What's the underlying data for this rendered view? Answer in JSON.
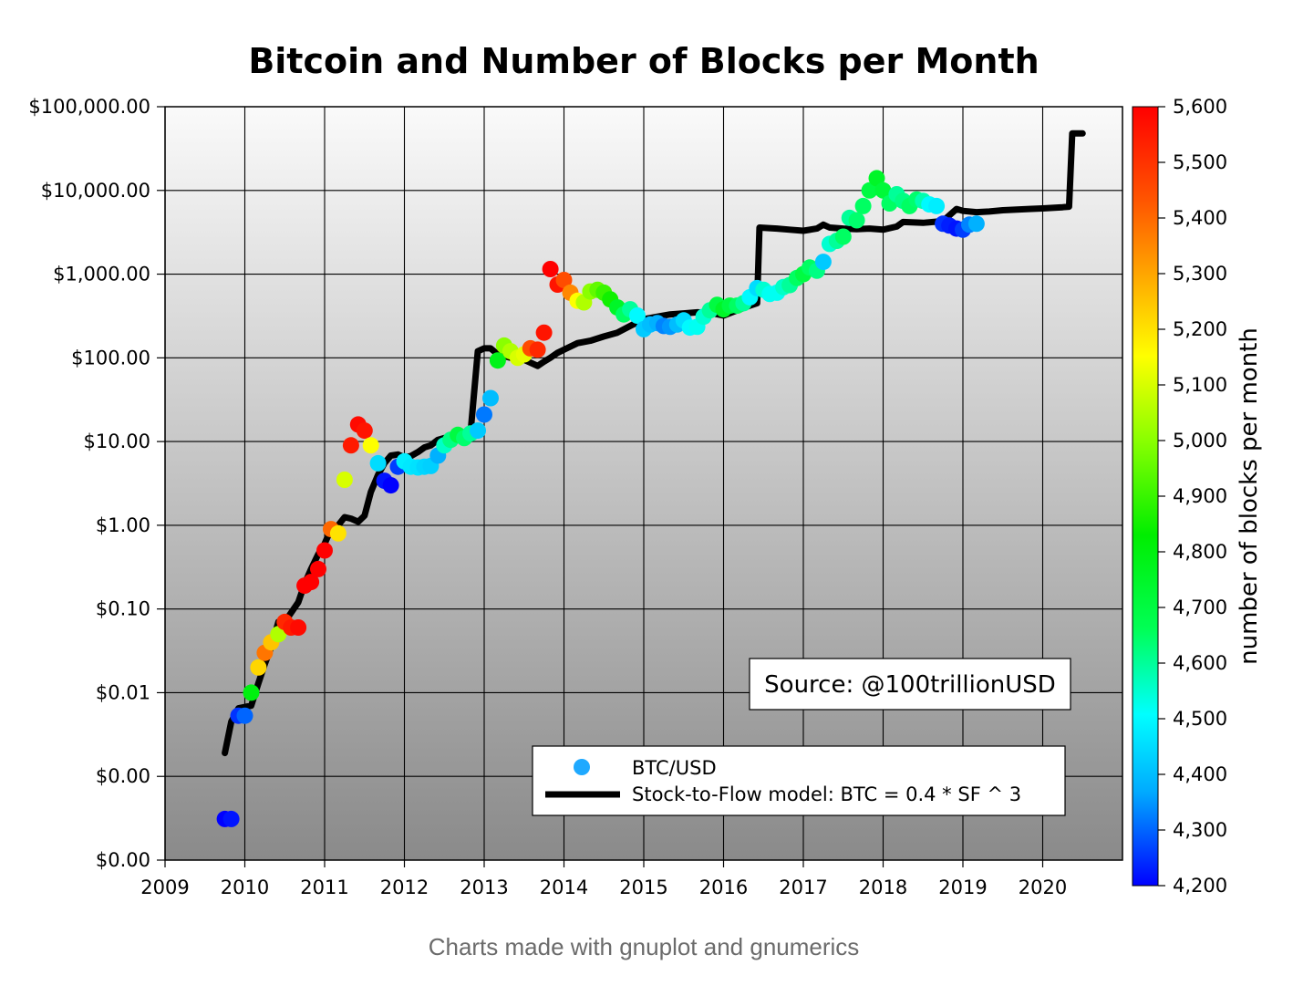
{
  "caption": "Charts made with gnuplot and gnumerics",
  "chart_data": {
    "type": "scatter",
    "title": "Bitcoin and Number of Blocks per Month",
    "xlabel": "",
    "ylabel": "",
    "y_scale": "log",
    "xlim": [
      2009,
      2021
    ],
    "ylim": [
      0.0001,
      100000
    ],
    "x_ticks": [
      2009,
      2010,
      2011,
      2012,
      2013,
      2014,
      2015,
      2016,
      2017,
      2018,
      2019,
      2020
    ],
    "x_tick_labels": [
      "2009",
      "2010",
      "2011",
      "2012",
      "2013",
      "2014",
      "2015",
      "2016",
      "2017",
      "2018",
      "2019",
      "2020"
    ],
    "y_ticks": [
      0.0001,
      0.001,
      0.01,
      0.1,
      1,
      10,
      100,
      1000,
      10000,
      100000
    ],
    "y_tick_labels": [
      "$0.00",
      "$0.00",
      "$0.01",
      "$0.10",
      "$1.00",
      "$10.00",
      "$100.00",
      "$1,000.00",
      "$10,000.00",
      "$100,000.00"
    ],
    "grid": true,
    "background_gradient": [
      "#fafafa",
      "#8a8a8a"
    ],
    "colorbar": {
      "label": "number of blocks per month",
      "min": 4200,
      "max": 5600,
      "ticks": [
        4200,
        4300,
        4400,
        4500,
        4600,
        4700,
        4800,
        4900,
        5000,
        5100,
        5200,
        5300,
        5400,
        5500,
        5600
      ],
      "tick_labels": [
        "4,200",
        "4,300",
        "4,400",
        "4,500",
        "4,600",
        "4,700",
        "4,800",
        "4,900",
        "5,000",
        "5,100",
        "5,200",
        "5,300",
        "5,400",
        "5,500",
        "5,600"
      ],
      "colors": [
        "#0000ff",
        "#00aaff",
        "#00ffff",
        "#00ff55",
        "#00ee00",
        "#88ff00",
        "#ffff00",
        "#ffaa00",
        "#ff5500",
        "#ff0000"
      ]
    },
    "legend": {
      "placement": "bottom-right",
      "entries": [
        "BTC/USD",
        "Stock-to-Flow model: BTC = 0.4 * SF ^ 3"
      ],
      "marker_color": "#1fa9ff"
    },
    "source_annotation": "Source: @100trillionUSD",
    "series": [
      {
        "name": "BTC/USD",
        "kind": "scatter",
        "points": [
          [
            2009.75,
            0.00031,
            4200
          ],
          [
            2009.83,
            0.00031,
            4220
          ],
          [
            2009.92,
            0.0053,
            4250
          ],
          [
            2010.0,
            0.0053,
            4300
          ],
          [
            2010.08,
            0.01,
            4800
          ],
          [
            2010.17,
            0.02,
            5220
          ],
          [
            2010.25,
            0.03,
            5380
          ],
          [
            2010.33,
            0.04,
            5250
          ],
          [
            2010.42,
            0.05,
            5050
          ],
          [
            2010.5,
            0.07,
            5520
          ],
          [
            2010.58,
            0.06,
            5550
          ],
          [
            2010.67,
            0.06,
            5580
          ],
          [
            2010.75,
            0.19,
            5600
          ],
          [
            2010.83,
            0.21,
            5600
          ],
          [
            2010.92,
            0.3,
            5600
          ],
          [
            2011.0,
            0.5,
            5600
          ],
          [
            2011.08,
            0.9,
            5400
          ],
          [
            2011.17,
            0.8,
            5200
          ],
          [
            2011.25,
            3.5,
            5100
          ],
          [
            2011.33,
            9.0,
            5550
          ],
          [
            2011.42,
            16.0,
            5580
          ],
          [
            2011.5,
            13.5,
            5560
          ],
          [
            2011.58,
            9.0,
            5150
          ],
          [
            2011.67,
            5.5,
            4450
          ],
          [
            2011.75,
            3.4,
            4220
          ],
          [
            2011.83,
            3.0,
            4200
          ],
          [
            2011.92,
            5.0,
            4260
          ],
          [
            2012.0,
            5.8,
            4480
          ],
          [
            2012.08,
            5.0,
            4470
          ],
          [
            2012.17,
            4.9,
            4460
          ],
          [
            2012.25,
            5.0,
            4440
          ],
          [
            2012.33,
            5.1,
            4430
          ],
          [
            2012.42,
            6.8,
            4380
          ],
          [
            2012.5,
            9.0,
            4560
          ],
          [
            2012.58,
            10.5,
            4620
          ],
          [
            2012.67,
            12.0,
            4700
          ],
          [
            2012.75,
            11.0,
            4640
          ],
          [
            2012.83,
            12.5,
            4600
          ],
          [
            2012.92,
            13.5,
            4420
          ],
          [
            2013.0,
            21.0,
            4320
          ],
          [
            2013.08,
            33.0,
            4400
          ],
          [
            2013.17,
            93.0,
            4780
          ],
          [
            2013.25,
            140.0,
            5000
          ],
          [
            2013.33,
            120.0,
            5050
          ],
          [
            2013.42,
            100.0,
            5100
          ],
          [
            2013.5,
            110.0,
            5120
          ],
          [
            2013.58,
            130.0,
            5450
          ],
          [
            2013.67,
            125.0,
            5520
          ],
          [
            2013.75,
            200.0,
            5560
          ],
          [
            2013.83,
            1150.0,
            5600
          ],
          [
            2013.92,
            750.0,
            5560
          ],
          [
            2014.0,
            850.0,
            5450
          ],
          [
            2014.08,
            600.0,
            5350
          ],
          [
            2014.17,
            480.0,
            5150
          ],
          [
            2014.25,
            460.0,
            5050
          ],
          [
            2014.33,
            620.0,
            5000
          ],
          [
            2014.42,
            650.0,
            4950
          ],
          [
            2014.5,
            600.0,
            4900
          ],
          [
            2014.58,
            500.0,
            4850
          ],
          [
            2014.67,
            400.0,
            4750
          ],
          [
            2014.75,
            330.0,
            4650
          ],
          [
            2014.83,
            380.0,
            4600
          ],
          [
            2014.92,
            320.0,
            4500
          ],
          [
            2015.0,
            220.0,
            4420
          ],
          [
            2015.08,
            250.0,
            4400
          ],
          [
            2015.17,
            260.0,
            4380
          ],
          [
            2015.25,
            240.0,
            4330
          ],
          [
            2015.33,
            235.0,
            4350
          ],
          [
            2015.42,
            250.0,
            4400
          ],
          [
            2015.5,
            280.0,
            4450
          ],
          [
            2015.58,
            230.0,
            4500
          ],
          [
            2015.67,
            235.0,
            4520
          ],
          [
            2015.75,
            310.0,
            4550
          ],
          [
            2015.83,
            370.0,
            4600
          ],
          [
            2015.92,
            430.0,
            4700
          ],
          [
            2016.0,
            380.0,
            4750
          ],
          [
            2016.08,
            420.0,
            4700
          ],
          [
            2016.17,
            420.0,
            4650
          ],
          [
            2016.25,
            450.0,
            4600
          ],
          [
            2016.33,
            530.0,
            4500
          ],
          [
            2016.42,
            680.0,
            4450
          ],
          [
            2016.5,
            650.0,
            4550
          ],
          [
            2016.58,
            580.0,
            4520
          ],
          [
            2016.67,
            600.0,
            4520
          ],
          [
            2016.75,
            700.0,
            4560
          ],
          [
            2016.83,
            740.0,
            4600
          ],
          [
            2016.92,
            900.0,
            4650
          ],
          [
            2017.0,
            1000.0,
            4700
          ],
          [
            2017.08,
            1200.0,
            4650
          ],
          [
            2017.17,
            1100.0,
            4620
          ],
          [
            2017.25,
            1400.0,
            4420
          ],
          [
            2017.33,
            2300.0,
            4550
          ],
          [
            2017.42,
            2500.0,
            4600
          ],
          [
            2017.5,
            2800.0,
            4650
          ],
          [
            2017.58,
            4700.0,
            4600
          ],
          [
            2017.67,
            4400.0,
            4640
          ],
          [
            2017.75,
            6500.0,
            4650
          ],
          [
            2017.83,
            10000.0,
            4700
          ],
          [
            2017.92,
            14000.0,
            4750
          ],
          [
            2018.0,
            10000.0,
            4720
          ],
          [
            2018.08,
            7000.0,
            4650
          ],
          [
            2018.17,
            9000.0,
            4600
          ],
          [
            2018.25,
            7500.0,
            4620
          ],
          [
            2018.33,
            6500.0,
            4650
          ],
          [
            2018.42,
            7800.0,
            4640
          ],
          [
            2018.5,
            7500.0,
            4580
          ],
          [
            2018.58,
            6800.0,
            4500
          ],
          [
            2018.67,
            6500.0,
            4480
          ],
          [
            2018.75,
            4000.0,
            4250
          ],
          [
            2018.83,
            3800.0,
            4230
          ],
          [
            2018.92,
            3500.0,
            4220
          ],
          [
            2019.0,
            3400.0,
            4260
          ],
          [
            2019.08,
            3900.0,
            4330
          ],
          [
            2019.17,
            4000.0,
            4380
          ]
        ]
      },
      {
        "name": "Stock-to-Flow model: BTC = 0.4 * SF ^ 3",
        "kind": "line",
        "color": "#000000",
        "points": [
          [
            2009.75,
            0.0019
          ],
          [
            2009.83,
            0.0045
          ],
          [
            2009.92,
            0.0065
          ],
          [
            2010.08,
            0.007
          ],
          [
            2010.17,
            0.013
          ],
          [
            2010.25,
            0.022
          ],
          [
            2010.33,
            0.035
          ],
          [
            2010.42,
            0.07
          ],
          [
            2010.5,
            0.07
          ],
          [
            2010.58,
            0.09
          ],
          [
            2010.67,
            0.12
          ],
          [
            2010.75,
            0.2
          ],
          [
            2010.83,
            0.3
          ],
          [
            2010.92,
            0.45
          ],
          [
            2011.0,
            0.6
          ],
          [
            2011.08,
            0.9
          ],
          [
            2011.17,
            1.0
          ],
          [
            2011.25,
            1.25
          ],
          [
            2011.33,
            1.2
          ],
          [
            2011.42,
            1.1
          ],
          [
            2011.5,
            1.3
          ],
          [
            2011.58,
            2.5
          ],
          [
            2011.67,
            4.0
          ],
          [
            2011.75,
            5.5
          ],
          [
            2011.83,
            6.8
          ],
          [
            2011.92,
            7.0
          ],
          [
            2012.0,
            6.5
          ],
          [
            2012.08,
            6.7
          ],
          [
            2012.17,
            7.5
          ],
          [
            2012.25,
            8.5
          ],
          [
            2012.33,
            9.0
          ],
          [
            2012.42,
            10.5
          ],
          [
            2012.5,
            11.0
          ],
          [
            2012.58,
            11.5
          ],
          [
            2012.67,
            12.0
          ],
          [
            2012.75,
            12.5
          ],
          [
            2012.83,
            13.0
          ],
          [
            2012.92,
            120.0
          ],
          [
            2013.0,
            130.0
          ],
          [
            2013.08,
            130.0
          ],
          [
            2013.17,
            110.0
          ],
          [
            2013.25,
            105.0
          ],
          [
            2013.33,
            100.0
          ],
          [
            2013.5,
            95.0
          ],
          [
            2013.67,
            80.0
          ],
          [
            2013.75,
            90.0
          ],
          [
            2013.83,
            100.0
          ],
          [
            2013.92,
            115.0
          ],
          [
            2014.0,
            125.0
          ],
          [
            2014.17,
            150.0
          ],
          [
            2014.33,
            160.0
          ],
          [
            2014.5,
            180.0
          ],
          [
            2014.67,
            200.0
          ],
          [
            2014.83,
            240.0
          ],
          [
            2015.0,
            290.0
          ],
          [
            2015.17,
            310.0
          ],
          [
            2015.33,
            330.0
          ],
          [
            2015.5,
            340.0
          ],
          [
            2015.67,
            350.0
          ],
          [
            2015.83,
            345.0
          ],
          [
            2016.0,
            320.0
          ],
          [
            2016.17,
            370.0
          ],
          [
            2016.33,
            420.0
          ],
          [
            2016.42,
            450.0
          ],
          [
            2016.45,
            3600.0
          ],
          [
            2016.67,
            3500.0
          ],
          [
            2016.83,
            3400.0
          ],
          [
            2017.0,
            3300.0
          ],
          [
            2017.17,
            3500.0
          ],
          [
            2017.25,
            3900.0
          ],
          [
            2017.33,
            3600.0
          ],
          [
            2017.5,
            3500.0
          ],
          [
            2017.67,
            3450.0
          ],
          [
            2017.83,
            3500.0
          ],
          [
            2018.0,
            3400.0
          ],
          [
            2018.17,
            3700.0
          ],
          [
            2018.25,
            4200.0
          ],
          [
            2018.5,
            4100.0
          ],
          [
            2018.75,
            4300.0
          ],
          [
            2018.92,
            6000.0
          ],
          [
            2019.0,
            5700.0
          ],
          [
            2019.17,
            5500.0
          ],
          [
            2019.33,
            5600.0
          ],
          [
            2019.5,
            5800.0
          ],
          [
            2019.83,
            6000.0
          ],
          [
            2020.0,
            6100.0
          ],
          [
            2020.25,
            6300.0
          ],
          [
            2020.33,
            6400.0
          ],
          [
            2020.37,
            48000.0
          ],
          [
            2020.5,
            48000.0
          ]
        ]
      }
    ]
  }
}
